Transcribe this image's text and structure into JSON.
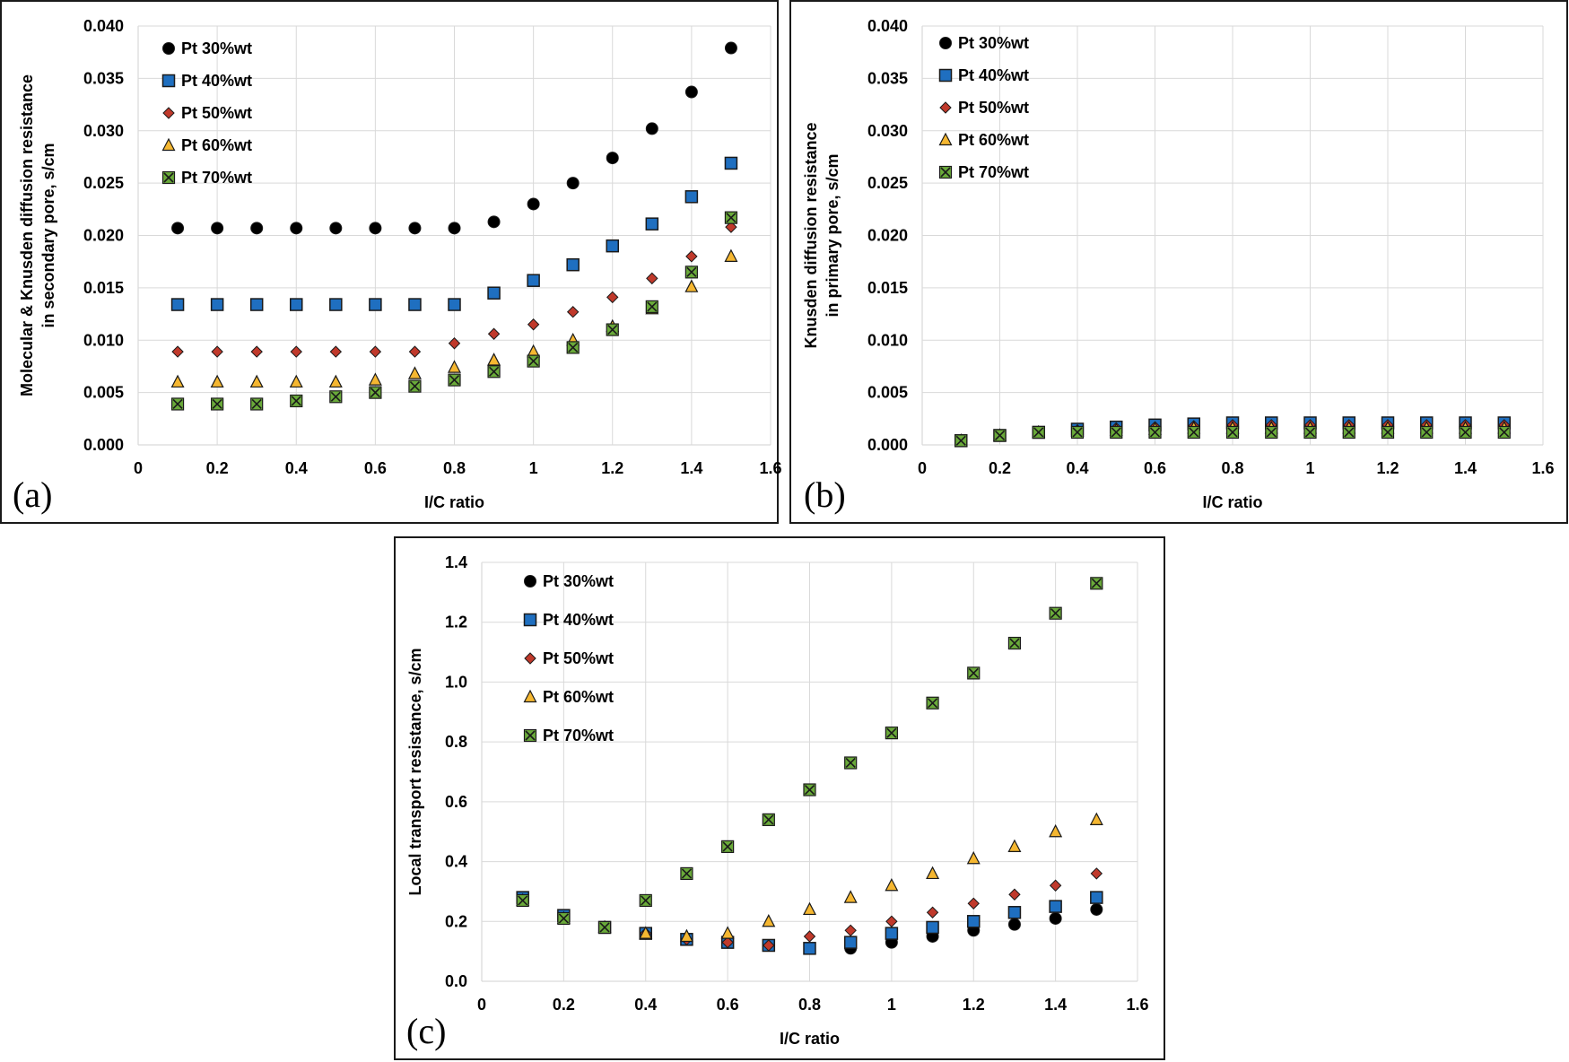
{
  "colors": {
    "s30": "#000000",
    "s40": "#1f6fc0",
    "s50": "#c0392b",
    "s60": "#f5b731",
    "s70": "#6aaa3a"
  },
  "chart_data": [
    {
      "type": "scatter",
      "panel_label": "(a)",
      "xlabel": "I/C ratio",
      "ylabel": [
        "Molecular & Knusden diffusion resistance",
        "in secondary pore, s/cm"
      ],
      "xlim": [
        0,
        1.6
      ],
      "ylim": [
        0,
        0.04
      ],
      "x_ticks": [
        "0",
        "0.2",
        "0.4",
        "0.6",
        "0.8",
        "1",
        "1.2",
        "1.4",
        "1.6"
      ],
      "y_ticks": [
        "0.000",
        "0.005",
        "0.010",
        "0.015",
        "0.020",
        "0.025",
        "0.030",
        "0.035",
        "0.040"
      ],
      "grid": true,
      "legend_position": "top-left",
      "x": [
        0.1,
        0.2,
        0.3,
        0.4,
        0.5,
        0.6,
        0.7,
        0.8,
        0.9,
        1.0,
        1.1,
        1.2,
        1.3,
        1.4,
        1.5
      ],
      "series": [
        {
          "name": "Pt 30%wt",
          "marker": "circle",
          "values": [
            0.0207,
            0.0207,
            0.0207,
            0.0207,
            0.0207,
            0.0207,
            0.0207,
            0.0207,
            0.0213,
            0.023,
            0.025,
            0.0274,
            0.0302,
            0.0337,
            0.0379
          ]
        },
        {
          "name": "Pt 40%wt",
          "marker": "square",
          "values": [
            0.0134,
            0.0134,
            0.0134,
            0.0134,
            0.0134,
            0.0134,
            0.0134,
            0.0134,
            0.0145,
            0.0157,
            0.0172,
            0.019,
            0.0211,
            0.0237,
            0.0269
          ]
        },
        {
          "name": "Pt 50%wt",
          "marker": "diamond",
          "values": [
            0.0089,
            0.0089,
            0.0089,
            0.0089,
            0.0089,
            0.0089,
            0.0089,
            0.0097,
            0.0106,
            0.0115,
            0.0127,
            0.0141,
            0.0159,
            0.018,
            0.0208
          ]
        },
        {
          "name": "Pt 60%wt",
          "marker": "triangle",
          "values": [
            0.006,
            0.006,
            0.006,
            0.006,
            0.006,
            0.0062,
            0.0068,
            0.0074,
            0.0081,
            0.0089,
            0.01,
            0.0113,
            0.013,
            0.0151,
            0.018
          ]
        },
        {
          "name": "Pt 70%wt",
          "marker": "xsquare",
          "values": [
            0.0039,
            0.0039,
            0.0039,
            0.0042,
            0.0046,
            0.005,
            0.0056,
            0.0062,
            0.007,
            0.008,
            0.0093,
            0.011,
            0.0132,
            0.0165,
            0.0217
          ]
        }
      ]
    },
    {
      "type": "scatter",
      "panel_label": "(b)",
      "xlabel": "I/C ratio",
      "ylabel": [
        "Knusden diffusion resistance",
        "in primary pore, s/cm"
      ],
      "xlim": [
        0,
        1.6
      ],
      "ylim": [
        0,
        0.04
      ],
      "x_ticks": [
        "0",
        "0.2",
        "0.4",
        "0.6",
        "0.8",
        "1",
        "1.2",
        "1.4",
        "1.6"
      ],
      "y_ticks": [
        "0.000",
        "0.005",
        "0.010",
        "0.015",
        "0.020",
        "0.025",
        "0.030",
        "0.035",
        "0.040"
      ],
      "grid": true,
      "legend_position": "top-left",
      "x": [
        0.1,
        0.2,
        0.3,
        0.4,
        0.5,
        0.6,
        0.7,
        0.8,
        0.9,
        1.0,
        1.1,
        1.2,
        1.3,
        1.4,
        1.5
      ],
      "series": [
        {
          "name": "Pt 30%wt",
          "marker": "circle",
          "values": [
            0.0004,
            0.0009,
            0.0012,
            0.0015,
            0.0017,
            0.0019,
            0.002,
            0.0021,
            0.0021,
            0.0021,
            0.0021,
            0.0021,
            0.0021,
            0.0021,
            0.0021
          ]
        },
        {
          "name": "Pt 40%wt",
          "marker": "square",
          "values": [
            0.0004,
            0.0009,
            0.0012,
            0.0015,
            0.0017,
            0.0019,
            0.002,
            0.0021,
            0.0021,
            0.0021,
            0.0021,
            0.0021,
            0.0021,
            0.0021,
            0.0021
          ]
        },
        {
          "name": "Pt 50%wt",
          "marker": "diamond",
          "values": [
            0.0004,
            0.0009,
            0.0012,
            0.0014,
            0.0016,
            0.0017,
            0.0018,
            0.0019,
            0.0019,
            0.0019,
            0.0019,
            0.0019,
            0.0019,
            0.0019,
            0.0019
          ]
        },
        {
          "name": "Pt 60%wt",
          "marker": "triangle",
          "values": [
            0.0004,
            0.0009,
            0.0012,
            0.0013,
            0.0014,
            0.0015,
            0.0016,
            0.0016,
            0.0016,
            0.0016,
            0.0016,
            0.0016,
            0.0016,
            0.0016,
            0.0016
          ]
        },
        {
          "name": "Pt 70%wt",
          "marker": "xsquare",
          "values": [
            0.0004,
            0.0009,
            0.0012,
            0.0012,
            0.0012,
            0.0012,
            0.0012,
            0.0012,
            0.0012,
            0.0012,
            0.0012,
            0.0012,
            0.0012,
            0.0012,
            0.0012
          ]
        }
      ]
    },
    {
      "type": "scatter",
      "panel_label": "(c)",
      "xlabel": "I/C ratio",
      "ylabel": [
        "Local transport resistance, s/cm"
      ],
      "xlim": [
        0,
        1.6
      ],
      "ylim": [
        0,
        1.4
      ],
      "x_ticks": [
        "0",
        "0.2",
        "0.4",
        "0.6",
        "0.8",
        "1",
        "1.2",
        "1.4",
        "1.6"
      ],
      "y_ticks": [
        "0.0",
        "0.2",
        "0.4",
        "0.6",
        "0.8",
        "1.0",
        "1.2",
        "1.4"
      ],
      "grid": true,
      "legend_position": "top-left",
      "x": [
        0.1,
        0.2,
        0.3,
        0.4,
        0.5,
        0.6,
        0.7,
        0.8,
        0.9,
        1.0,
        1.1,
        1.2,
        1.3,
        1.4,
        1.5
      ],
      "series": [
        {
          "name": "Pt 30%wt",
          "marker": "circle",
          "values": [
            0.28,
            0.22,
            0.18,
            0.16,
            0.14,
            0.13,
            0.12,
            0.11,
            0.11,
            0.13,
            0.15,
            0.17,
            0.19,
            0.21,
            0.24
          ]
        },
        {
          "name": "Pt 40%wt",
          "marker": "square",
          "values": [
            0.28,
            0.22,
            0.18,
            0.16,
            0.14,
            0.13,
            0.12,
            0.11,
            0.13,
            0.16,
            0.18,
            0.2,
            0.23,
            0.25,
            0.28
          ]
        },
        {
          "name": "Pt 50%wt",
          "marker": "diamond",
          "values": [
            0.27,
            0.21,
            0.18,
            0.16,
            0.14,
            0.13,
            0.12,
            0.15,
            0.17,
            0.2,
            0.23,
            0.26,
            0.29,
            0.32,
            0.36
          ]
        },
        {
          "name": "Pt 60%wt",
          "marker": "triangle",
          "values": [
            0.27,
            0.21,
            0.18,
            0.16,
            0.15,
            0.16,
            0.2,
            0.24,
            0.28,
            0.32,
            0.36,
            0.41,
            0.45,
            0.5,
            0.54
          ]
        },
        {
          "name": "Pt 70%wt",
          "marker": "xsquare",
          "values": [
            0.27,
            0.21,
            0.18,
            0.27,
            0.36,
            0.45,
            0.54,
            0.64,
            0.73,
            0.83,
            0.93,
            1.03,
            1.13,
            1.23,
            1.33
          ]
        }
      ]
    }
  ]
}
